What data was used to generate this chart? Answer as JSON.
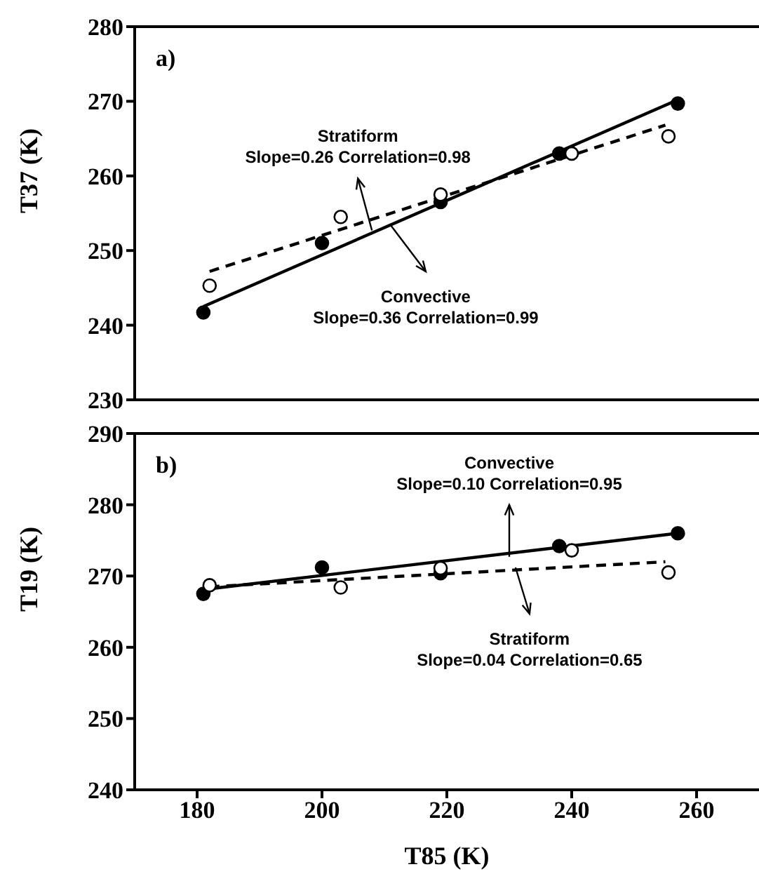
{
  "chart_data": [
    {
      "type": "scatter",
      "ylabel": "T37 (K)",
      "xlim": [
        170,
        270
      ],
      "xticks": [
        180,
        200,
        220,
        240,
        260
      ],
      "ylim": [
        230,
        280
      ],
      "yticks": [
        230,
        240,
        250,
        260,
        270,
        280
      ],
      "tick_labels": "y",
      "grid": false,
      "legend": false,
      "annotations": [
        "a)",
        {
          "text": "Stratiform\nSlope=0.26 Correlation=0.98",
          "x": 208,
          "y": 252.7
        },
        {
          "text": "Convective\nSlope=0.36 Correlation=0.99",
          "x": 211,
          "y": 253.4
        }
      ],
      "series": [
        {
          "color": "#000000",
          "marker": "circle",
          "x": [
            181,
            200,
            219,
            238,
            257
          ],
          "values": [
            241.7,
            251,
            256.5,
            263,
            269.7
          ]
        },
        {
          "color": "#ffffff",
          "marker": "circle",
          "x": [
            182,
            203,
            219,
            240,
            255.5
          ],
          "values": [
            245.3,
            254.5,
            257.5,
            263,
            265.3
          ]
        },
        {
          "type": "line",
          "color": "#000000",
          "marker": "none",
          "line_style": "solid",
          "x": [
            181,
            257
          ],
          "values": [
            242.5,
            270.2
          ]
        },
        {
          "type": "line",
          "color": "#000000",
          "marker": "none",
          "line_style": "dashed",
          "x": [
            182,
            255
          ],
          "values": [
            247.2,
            266.8
          ]
        }
      ]
    },
    {
      "type": "scatter",
      "ylabel": "T19 (K)",
      "xlabel": "T85 (K)",
      "xlim": [
        170,
        270
      ],
      "xticks": [
        180,
        200,
        220,
        240,
        260
      ],
      "ylim": [
        240,
        290
      ],
      "yticks": [
        240,
        250,
        260,
        270,
        280,
        290
      ],
      "grid": false,
      "legend": false,
      "annotations": [
        "b)",
        {
          "text": "Convective\nSlope=0.10 Correlation=0.95",
          "x": 230,
          "y": 272.7
        },
        {
          "text": "Stratiform\nSlope=0.04 Correlation=0.65",
          "x": 231,
          "y": 271.2
        }
      ],
      "series": [
        {
          "color": "#000000",
          "marker": "circle",
          "x": [
            181,
            200,
            219,
            238,
            257
          ],
          "values": [
            267.5,
            271.2,
            270.4,
            274.2,
            276
          ]
        },
        {
          "color": "#ffffff",
          "marker": "circle",
          "x": [
            182,
            203,
            219,
            240,
            255.5
          ],
          "values": [
            268.7,
            268.4,
            271.1,
            273.6,
            270.5
          ]
        },
        {
          "type": "line",
          "color": "#000000",
          "marker": "none",
          "line_style": "solid",
          "x": [
            181,
            257
          ],
          "values": [
            268.1,
            276
          ]
        },
        {
          "type": "line",
          "color": "#000000",
          "marker": "none",
          "line_style": "dashed",
          "x": [
            182,
            255
          ],
          "values": [
            268.5,
            272
          ]
        }
      ]
    }
  ]
}
